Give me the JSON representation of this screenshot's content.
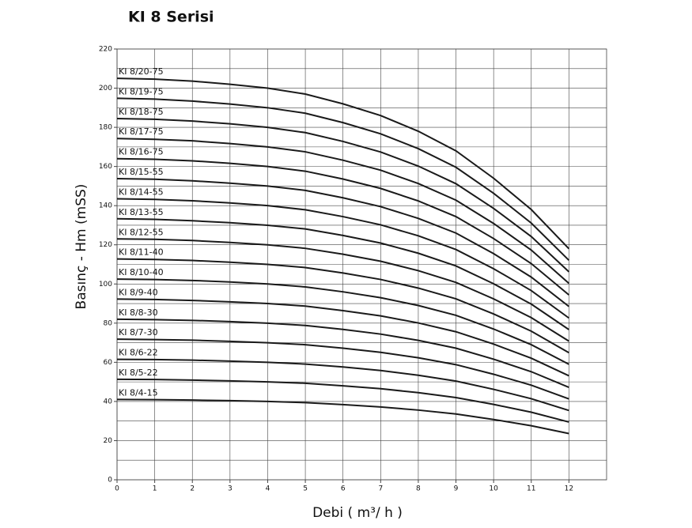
{
  "chart_data": {
    "type": "line",
    "title": "KI 8 Serisi",
    "x_label": "Debi ( m³/ h )",
    "y_label": "Basınç - Hm (mSS)",
    "x": [
      0,
      1,
      2,
      3,
      4,
      5,
      6,
      7,
      8,
      9,
      10,
      11,
      12
    ],
    "xlim": [
      0,
      13
    ],
    "xticks": [
      0,
      1,
      2,
      3,
      4,
      5,
      6,
      7,
      8,
      9,
      10,
      11,
      12
    ],
    "ylim": [
      0,
      220
    ],
    "yticks": [
      0,
      20,
      40,
      60,
      80,
      100,
      120,
      140,
      160,
      180,
      200,
      220
    ],
    "yminor_ticks": [
      10,
      30,
      50,
      70,
      90,
      110,
      130,
      150,
      170,
      190,
      210
    ],
    "grid": true,
    "color": "#1a1a1a",
    "series": [
      {
        "name": "KI 8/20-75",
        "values": [
          205,
          204.6,
          203.6,
          202,
          200,
          197,
          192,
          186,
          178,
          168,
          154,
          138,
          118
        ]
      },
      {
        "name": "KI 8/19-75",
        "values": [
          194.8,
          194.4,
          193.4,
          191.9,
          190,
          187.2,
          182.4,
          176.7,
          169.1,
          159.6,
          146.3,
          131.1,
          112.1
        ]
      },
      {
        "name": "KI 8/18-75",
        "values": [
          184.5,
          184.1,
          183.2,
          181.8,
          180,
          177.3,
          172.8,
          167.4,
          160.2,
          151.2,
          138.6,
          124.2,
          106.2
        ]
      },
      {
        "name": "KI 8/17-75",
        "values": [
          174.3,
          173.9,
          173.1,
          171.7,
          170,
          167.5,
          163.2,
          158.1,
          151.3,
          142.8,
          130.9,
          117.3,
          100.3
        ]
      },
      {
        "name": "KI 8/16-75",
        "values": [
          164,
          163.7,
          162.9,
          161.6,
          160,
          157.6,
          153.6,
          148.8,
          142.4,
          134.4,
          123.2,
          110.4,
          94.4
        ]
      },
      {
        "name": "KI 8/15-55",
        "values": [
          153.8,
          153.5,
          152.7,
          151.5,
          150,
          147.8,
          144,
          139.5,
          133.5,
          126,
          115.5,
          103.5,
          88.5
        ]
      },
      {
        "name": "KI 8/14-55",
        "values": [
          143.5,
          143.2,
          142.5,
          141.4,
          140,
          137.9,
          134.4,
          130.2,
          124.6,
          117.6,
          107.8,
          96.6,
          82.6
        ]
      },
      {
        "name": "KI 8/13-55",
        "values": [
          133.3,
          133,
          132.3,
          131.3,
          130,
          128.1,
          124.8,
          120.9,
          115.7,
          109.2,
          100.1,
          89.7,
          76.7
        ]
      },
      {
        "name": "KI 8/12-55",
        "values": [
          123,
          122.8,
          122.2,
          121.2,
          120,
          118.2,
          115.2,
          111.6,
          106.8,
          100.8,
          92.4,
          82.8,
          70.8
        ]
      },
      {
        "name": "KI 8/11-40",
        "values": [
          112.8,
          112.5,
          112,
          111.1,
          110,
          108.4,
          105.6,
          102.3,
          97.9,
          92.4,
          84.7,
          75.9,
          64.9
        ]
      },
      {
        "name": "KI 8/10-40",
        "values": [
          102.5,
          102.3,
          101.8,
          101,
          100,
          98.5,
          96,
          93,
          89,
          84,
          77,
          69,
          59
        ]
      },
      {
        "name": "KI 8/9-40",
        "values": [
          92.3,
          92.1,
          91.6,
          90.9,
          90,
          88.7,
          86.4,
          83.7,
          80.1,
          75.6,
          69.3,
          62.1,
          53.1
        ]
      },
      {
        "name": "KI 8/8-30",
        "values": [
          82,
          81.8,
          81.4,
          80.8,
          80,
          78.8,
          76.8,
          74.4,
          71.2,
          67.2,
          61.6,
          55.2,
          47.2
        ]
      },
      {
        "name": "KI 8/7-30",
        "values": [
          71.8,
          71.6,
          71.3,
          70.7,
          70,
          69,
          67.2,
          65.1,
          62.3,
          58.8,
          53.9,
          48.3,
          41.3
        ]
      },
      {
        "name": "KI 8/6-22",
        "values": [
          61.5,
          61.4,
          61.1,
          60.6,
          60,
          59.1,
          57.6,
          55.8,
          53.4,
          50.4,
          46.2,
          41.4,
          35.4
        ]
      },
      {
        "name": "KI 8/5-22",
        "values": [
          51.3,
          51.2,
          50.9,
          50.5,
          50,
          49.3,
          48,
          46.5,
          44.5,
          42,
          38.5,
          34.5,
          29.5
        ]
      },
      {
        "name": "KI 8/4-15",
        "values": [
          41,
          40.9,
          40.7,
          40.4,
          40,
          39.4,
          38.4,
          37.2,
          35.6,
          33.6,
          30.8,
          27.6,
          23.6
        ]
      }
    ]
  }
}
